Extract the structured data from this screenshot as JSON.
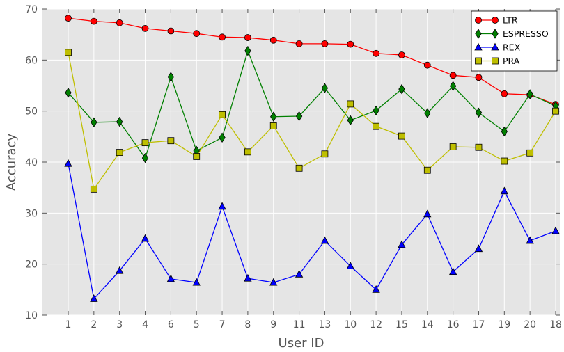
{
  "chart_data": {
    "type": "line",
    "title": "",
    "xlabel": "User ID",
    "ylabel": "Accuracy",
    "categories": [
      "1",
      "2",
      "3",
      "4",
      "6",
      "5",
      "7",
      "8",
      "9",
      "11",
      "13",
      "10",
      "12",
      "15",
      "14",
      "16",
      "17",
      "19",
      "20",
      "18"
    ],
    "ylim": [
      10,
      70
    ],
    "yticks": [
      10,
      20,
      30,
      40,
      50,
      60,
      70
    ],
    "grid": true,
    "legend_position": "top-right",
    "series": [
      {
        "name": "LTR",
        "color": "#ff0000",
        "marker": "circle",
        "values": [
          68.2,
          67.6,
          67.3,
          66.2,
          65.7,
          65.2,
          64.5,
          64.4,
          63.9,
          63.2,
          63.2,
          63.1,
          61.3,
          61.0,
          59.0,
          57.0,
          56.6,
          53.4,
          53.2,
          51.3
        ]
      },
      {
        "name": "ESPRESSO",
        "color": "#008000",
        "marker": "diamond",
        "values": [
          53.6,
          47.8,
          47.9,
          40.8,
          56.7,
          42.2,
          44.8,
          61.8,
          48.9,
          49.0,
          54.5,
          48.2,
          50.1,
          54.3,
          49.6,
          54.9,
          49.7,
          46.0,
          53.3,
          51.0
        ]
      },
      {
        "name": "REX",
        "color": "#0000ff",
        "marker": "triangle",
        "values": [
          39.7,
          13.2,
          18.7,
          25.0,
          17.1,
          16.4,
          31.3,
          17.2,
          16.4,
          18.0,
          24.6,
          19.6,
          15.0,
          23.8,
          29.8,
          18.5,
          23.0,
          34.3,
          24.6,
          26.5
        ]
      },
      {
        "name": "PRA",
        "color": "#bfbf00",
        "marker": "square",
        "values": [
          61.5,
          34.7,
          41.9,
          43.8,
          44.2,
          41.1,
          49.3,
          42.0,
          47.1,
          38.8,
          41.6,
          51.4,
          47.0,
          45.1,
          38.4,
          43.0,
          42.9,
          40.2,
          41.8,
          50.0
        ]
      }
    ]
  }
}
